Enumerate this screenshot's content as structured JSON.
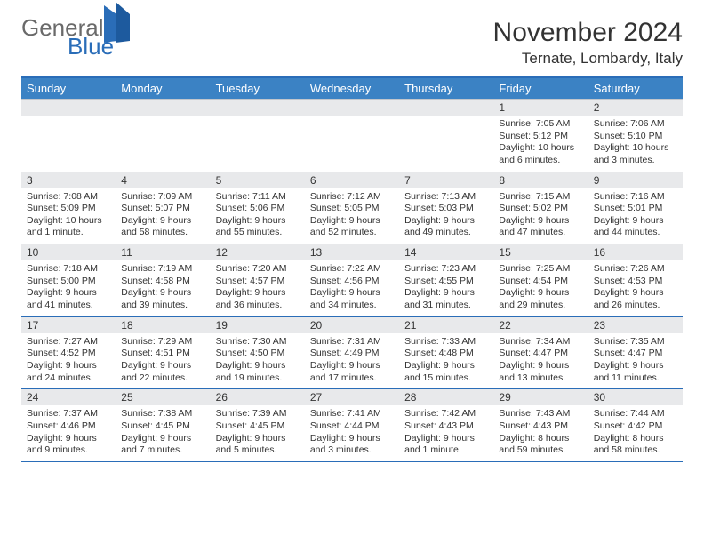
{
  "logo": {
    "line1": "General",
    "line2": "Blue"
  },
  "title": "November 2024",
  "location": "Ternate, Lombardy, Italy",
  "colors": {
    "header_bg": "#3b82c4",
    "header_text": "#ffffff",
    "border_top": "#2a6db8",
    "row_divider": "#2a6db8",
    "daynum_bg": "#e8e9eb",
    "text": "#333333",
    "logo_gray": "#6a6a6a",
    "logo_blue": "#2a6db8"
  },
  "typography": {
    "title_fontsize": 30,
    "location_fontsize": 17,
    "header_fontsize": 13,
    "daynum_fontsize": 12,
    "body_fontsize": 10.5
  },
  "week_headers": [
    "Sunday",
    "Monday",
    "Tuesday",
    "Wednesday",
    "Thursday",
    "Friday",
    "Saturday"
  ],
  "weeks": [
    [
      {
        "day": "",
        "sunrise": "",
        "sunset": "",
        "daylight": ""
      },
      {
        "day": "",
        "sunrise": "",
        "sunset": "",
        "daylight": ""
      },
      {
        "day": "",
        "sunrise": "",
        "sunset": "",
        "daylight": ""
      },
      {
        "day": "",
        "sunrise": "",
        "sunset": "",
        "daylight": ""
      },
      {
        "day": "",
        "sunrise": "",
        "sunset": "",
        "daylight": ""
      },
      {
        "day": "1",
        "sunrise": "Sunrise: 7:05 AM",
        "sunset": "Sunset: 5:12 PM",
        "daylight": "Daylight: 10 hours and 6 minutes."
      },
      {
        "day": "2",
        "sunrise": "Sunrise: 7:06 AM",
        "sunset": "Sunset: 5:10 PM",
        "daylight": "Daylight: 10 hours and 3 minutes."
      }
    ],
    [
      {
        "day": "3",
        "sunrise": "Sunrise: 7:08 AM",
        "sunset": "Sunset: 5:09 PM",
        "daylight": "Daylight: 10 hours and 1 minute."
      },
      {
        "day": "4",
        "sunrise": "Sunrise: 7:09 AM",
        "sunset": "Sunset: 5:07 PM",
        "daylight": "Daylight: 9 hours and 58 minutes."
      },
      {
        "day": "5",
        "sunrise": "Sunrise: 7:11 AM",
        "sunset": "Sunset: 5:06 PM",
        "daylight": "Daylight: 9 hours and 55 minutes."
      },
      {
        "day": "6",
        "sunrise": "Sunrise: 7:12 AM",
        "sunset": "Sunset: 5:05 PM",
        "daylight": "Daylight: 9 hours and 52 minutes."
      },
      {
        "day": "7",
        "sunrise": "Sunrise: 7:13 AM",
        "sunset": "Sunset: 5:03 PM",
        "daylight": "Daylight: 9 hours and 49 minutes."
      },
      {
        "day": "8",
        "sunrise": "Sunrise: 7:15 AM",
        "sunset": "Sunset: 5:02 PM",
        "daylight": "Daylight: 9 hours and 47 minutes."
      },
      {
        "day": "9",
        "sunrise": "Sunrise: 7:16 AM",
        "sunset": "Sunset: 5:01 PM",
        "daylight": "Daylight: 9 hours and 44 minutes."
      }
    ],
    [
      {
        "day": "10",
        "sunrise": "Sunrise: 7:18 AM",
        "sunset": "Sunset: 5:00 PM",
        "daylight": "Daylight: 9 hours and 41 minutes."
      },
      {
        "day": "11",
        "sunrise": "Sunrise: 7:19 AM",
        "sunset": "Sunset: 4:58 PM",
        "daylight": "Daylight: 9 hours and 39 minutes."
      },
      {
        "day": "12",
        "sunrise": "Sunrise: 7:20 AM",
        "sunset": "Sunset: 4:57 PM",
        "daylight": "Daylight: 9 hours and 36 minutes."
      },
      {
        "day": "13",
        "sunrise": "Sunrise: 7:22 AM",
        "sunset": "Sunset: 4:56 PM",
        "daylight": "Daylight: 9 hours and 34 minutes."
      },
      {
        "day": "14",
        "sunrise": "Sunrise: 7:23 AM",
        "sunset": "Sunset: 4:55 PM",
        "daylight": "Daylight: 9 hours and 31 minutes."
      },
      {
        "day": "15",
        "sunrise": "Sunrise: 7:25 AM",
        "sunset": "Sunset: 4:54 PM",
        "daylight": "Daylight: 9 hours and 29 minutes."
      },
      {
        "day": "16",
        "sunrise": "Sunrise: 7:26 AM",
        "sunset": "Sunset: 4:53 PM",
        "daylight": "Daylight: 9 hours and 26 minutes."
      }
    ],
    [
      {
        "day": "17",
        "sunrise": "Sunrise: 7:27 AM",
        "sunset": "Sunset: 4:52 PM",
        "daylight": "Daylight: 9 hours and 24 minutes."
      },
      {
        "day": "18",
        "sunrise": "Sunrise: 7:29 AM",
        "sunset": "Sunset: 4:51 PM",
        "daylight": "Daylight: 9 hours and 22 minutes."
      },
      {
        "day": "19",
        "sunrise": "Sunrise: 7:30 AM",
        "sunset": "Sunset: 4:50 PM",
        "daylight": "Daylight: 9 hours and 19 minutes."
      },
      {
        "day": "20",
        "sunrise": "Sunrise: 7:31 AM",
        "sunset": "Sunset: 4:49 PM",
        "daylight": "Daylight: 9 hours and 17 minutes."
      },
      {
        "day": "21",
        "sunrise": "Sunrise: 7:33 AM",
        "sunset": "Sunset: 4:48 PM",
        "daylight": "Daylight: 9 hours and 15 minutes."
      },
      {
        "day": "22",
        "sunrise": "Sunrise: 7:34 AM",
        "sunset": "Sunset: 4:47 PM",
        "daylight": "Daylight: 9 hours and 13 minutes."
      },
      {
        "day": "23",
        "sunrise": "Sunrise: 7:35 AM",
        "sunset": "Sunset: 4:47 PM",
        "daylight": "Daylight: 9 hours and 11 minutes."
      }
    ],
    [
      {
        "day": "24",
        "sunrise": "Sunrise: 7:37 AM",
        "sunset": "Sunset: 4:46 PM",
        "daylight": "Daylight: 9 hours and 9 minutes."
      },
      {
        "day": "25",
        "sunrise": "Sunrise: 7:38 AM",
        "sunset": "Sunset: 4:45 PM",
        "daylight": "Daylight: 9 hours and 7 minutes."
      },
      {
        "day": "26",
        "sunrise": "Sunrise: 7:39 AM",
        "sunset": "Sunset: 4:45 PM",
        "daylight": "Daylight: 9 hours and 5 minutes."
      },
      {
        "day": "27",
        "sunrise": "Sunrise: 7:41 AM",
        "sunset": "Sunset: 4:44 PM",
        "daylight": "Daylight: 9 hours and 3 minutes."
      },
      {
        "day": "28",
        "sunrise": "Sunrise: 7:42 AM",
        "sunset": "Sunset: 4:43 PM",
        "daylight": "Daylight: 9 hours and 1 minute."
      },
      {
        "day": "29",
        "sunrise": "Sunrise: 7:43 AM",
        "sunset": "Sunset: 4:43 PM",
        "daylight": "Daylight: 8 hours and 59 minutes."
      },
      {
        "day": "30",
        "sunrise": "Sunrise: 7:44 AM",
        "sunset": "Sunset: 4:42 PM",
        "daylight": "Daylight: 8 hours and 58 minutes."
      }
    ]
  ]
}
